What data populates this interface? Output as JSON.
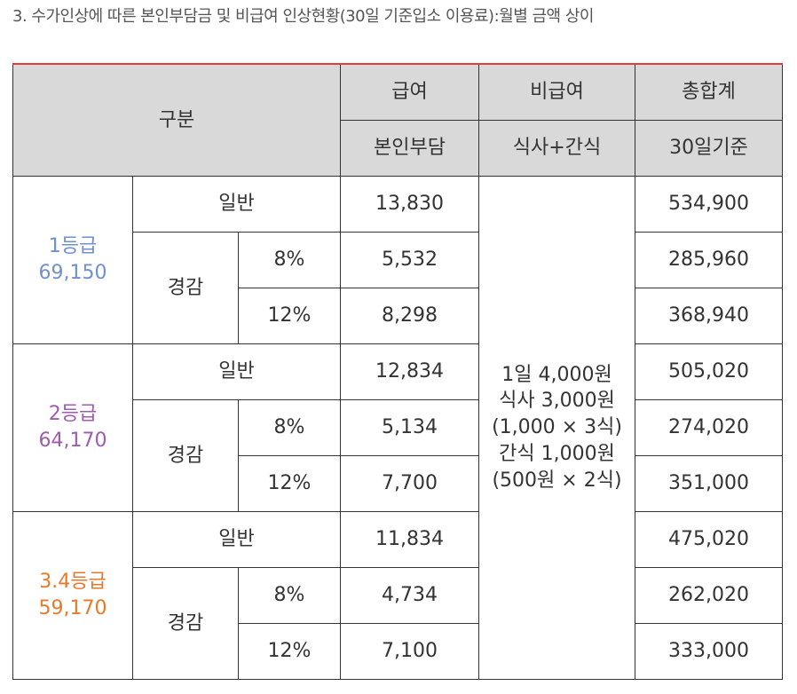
{
  "title": "3. 수가인상에 따른 본인부담금 및 비급여 인상현황(30일 기준입소 이용료):월별 금액 상이",
  "colors": {
    "header_bg": "#d9d9d9",
    "top_border": "#e43a3a",
    "grade1": "#6f8fd0",
    "grade2": "#a05ab0",
    "grade3": "#e8782a"
  },
  "header": {
    "category": "구분",
    "benefit": "급여",
    "non_benefit": "비급여",
    "total": "총합계",
    "benefit_sub": "본인부담",
    "non_benefit_sub": "식사+간식",
    "total_sub": "30일기준"
  },
  "labels": {
    "general": "일반",
    "reduced": "경감",
    "pct8": "8%",
    "pct12": "12%"
  },
  "meal_note": [
    "1일 4,000원",
    "식사 3,000원",
    "(1,000 × 3식)",
    "간식 1,000원",
    "(500원 × 2식)"
  ],
  "grades": [
    {
      "label": "1등급",
      "value": "69,150",
      "general": {
        "copay": "13,830",
        "total": "534,900"
      },
      "reduced8": {
        "copay": "5,532",
        "total": "285,960"
      },
      "reduced12": {
        "copay": "8,298",
        "total": "368,940"
      }
    },
    {
      "label": "2등급",
      "value": "64,170",
      "general": {
        "copay": "12,834",
        "total": "505,020"
      },
      "reduced8": {
        "copay": "5,134",
        "total": "274,020"
      },
      "reduced12": {
        "copay": "7,700",
        "total": "351,000"
      }
    },
    {
      "label": "3.4등급",
      "value": "59,170",
      "general": {
        "copay": "11,834",
        "total": "475,020"
      },
      "reduced8": {
        "copay": "4,734",
        "total": "262,020"
      },
      "reduced12": {
        "copay": "7,100",
        "total": "333,000"
      }
    }
  ]
}
